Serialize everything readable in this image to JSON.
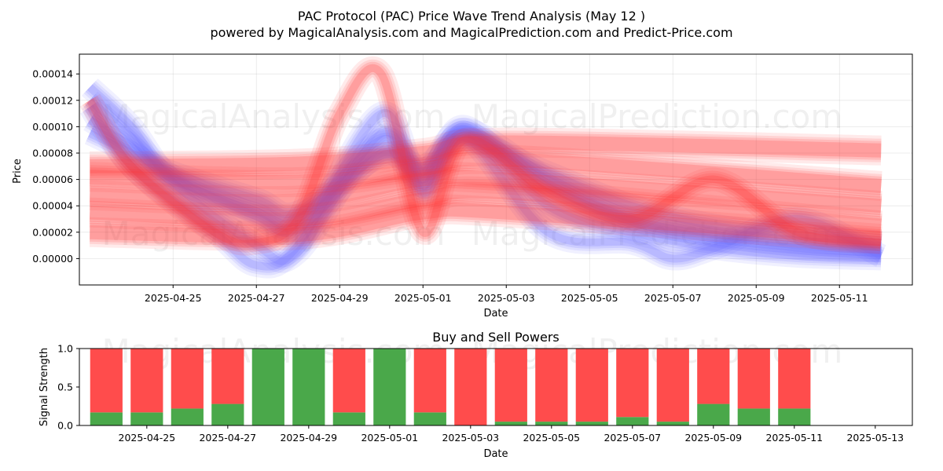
{
  "title_line1": "PAC Protocol (PAC) Price Wave Trend Analysis (May 12 )",
  "title_line2": "powered by MagicalAnalysis.com and MagicalPrediction.com and Predict-Price.com",
  "watermarks": [
    "MagicalAnalysis.com",
    "MagicalPrediction.com"
  ],
  "colors": {
    "buy": "#4aa84a",
    "sell": "#ff4c4c",
    "wave_blue": "#6a6aff",
    "wave_red": "#ff3030"
  },
  "chart_data": [
    {
      "type": "line",
      "title": "",
      "xlabel": "Date",
      "ylabel": "Price",
      "grid": true,
      "x_ticks": [
        "2025-04-25",
        "2025-04-27",
        "2025-04-29",
        "2025-05-01",
        "2025-05-03",
        "2025-05-05",
        "2025-05-07",
        "2025-05-09",
        "2025-05-11"
      ],
      "y_ticks": [
        "0.00000",
        "0.00002",
        "0.00004",
        "0.00006",
        "0.00008",
        "0.00010",
        "0.00012",
        "0.00014"
      ],
      "xlim": [
        "2025-04-22T18:00",
        "2025-05-12T18:00"
      ],
      "ylim": [
        -2e-05,
        0.000155
      ],
      "series": [
        {
          "color": "blue",
          "x": [
            "2025-04-23",
            "2025-04-24",
            "2025-04-25",
            "2025-04-27",
            "2025-04-28",
            "2025-04-30",
            "2025-05-01",
            "2025-05-02",
            "2025-05-04",
            "2025-05-06",
            "2025-05-08",
            "2025-05-10",
            "2025-05-12"
          ],
          "y": [
            0.00012,
            9.2e-05,
            6.2e-05,
            3.2e-05,
            2.2e-05,
            8e-05,
            6e-05,
            9.5e-05,
            5.5e-05,
            2.8e-05,
            1.5e-05,
            8e-06,
            4e-06
          ]
        },
        {
          "color": "blue",
          "x": [
            "2025-04-23",
            "2025-04-24",
            "2025-04-25",
            "2025-04-27",
            "2025-04-28",
            "2025-04-30",
            "2025-05-01",
            "2025-05-02",
            "2025-05-04",
            "2025-05-06",
            "2025-05-08",
            "2025-05-10",
            "2025-05-12"
          ],
          "y": [
            0.000105,
            8.5e-05,
            6e-05,
            3.6e-05,
            3e-05,
            9e-05,
            6.6e-05,
            9.8e-05,
            6e-05,
            3e-05,
            1.8e-05,
            1e-05,
            6e-06
          ]
        },
        {
          "color": "blue",
          "x": [
            "2025-04-23",
            "2025-04-24",
            "2025-04-25",
            "2025-04-27",
            "2025-04-28",
            "2025-04-30",
            "2025-05-01",
            "2025-05-02",
            "2025-05-04",
            "2025-05-06",
            "2025-05-08",
            "2025-05-10",
            "2025-05-12"
          ],
          "y": [
            0.00013,
            0.0001,
            5.8e-05,
            1e-05,
            5e-06,
            9.5e-05,
            5.5e-05,
            0.0001,
            4e-05,
            2e-05,
            8e-06,
            2e-06,
            0.0
          ]
        },
        {
          "color": "blue",
          "x": [
            "2025-04-23",
            "2025-04-24",
            "2025-04-25",
            "2025-04-27",
            "2025-04-28",
            "2025-04-30",
            "2025-05-01",
            "2025-05-02",
            "2025-05-04",
            "2025-05-06",
            "2025-05-08",
            "2025-05-10",
            "2025-05-12"
          ],
          "y": [
            9.5e-05,
            8e-05,
            6.5e-05,
            4.5e-05,
            3.5e-05,
            7.8e-05,
            7e-05,
            9e-05,
            6.5e-05,
            4e-05,
            2.5e-05,
            1.8e-05,
            1.2e-05
          ]
        },
        {
          "color": "blue",
          "x": [
            "2025-04-23",
            "2025-04-24",
            "2025-04-26",
            "2025-04-27",
            "2025-04-28",
            "2025-04-30",
            "2025-05-01",
            "2025-05-02",
            "2025-05-04",
            "2025-05-06",
            "2025-05-07",
            "2025-05-08",
            "2025-05-10",
            "2025-05-12"
          ],
          "y": [
            0.000115,
            7e-05,
            2e-05,
            -5e-06,
            1e-05,
            0.00011,
            5e-05,
            9.2e-05,
            2e-05,
            1.2e-05,
            0.0,
            8e-06,
            3e-05,
            2e-06
          ]
        },
        {
          "color": "red",
          "x": [
            "2025-04-23",
            "2025-04-24",
            "2025-04-26",
            "2025-04-27",
            "2025-04-28",
            "2025-04-29",
            "2025-04-30",
            "2025-05-01",
            "2025-05-02",
            "2025-05-04",
            "2025-05-06",
            "2025-05-08",
            "2025-05-10",
            "2025-05-12"
          ],
          "y": [
            0.00012,
            7e-05,
            2e-05,
            1.2e-05,
            3e-05,
            0.00011,
            0.00014,
            2e-05,
            9e-05,
            5e-05,
            3e-05,
            6e-05,
            2e-05,
            1.2e-05
          ]
        },
        {
          "color": "red",
          "x": [
            "2025-04-23",
            "2025-04-28",
            "2025-05-01",
            "2025-05-03",
            "2025-05-12"
          ],
          "y": [
            7e-05,
            7.2e-05,
            8e-05,
            8.8e-05,
            8.2e-05
          ]
        },
        {
          "color": "red",
          "x": [
            "2025-04-23",
            "2025-04-28",
            "2025-05-01",
            "2025-05-03",
            "2025-05-12"
          ],
          "y": [
            6.2e-05,
            5.8e-05,
            6.8e-05,
            7.5e-05,
            5.5e-05
          ]
        },
        {
          "color": "red",
          "x": [
            "2025-04-23",
            "2025-04-28",
            "2025-05-01",
            "2025-05-03",
            "2025-05-12"
          ],
          "y": [
            4.8e-05,
            4.4e-05,
            6e-05,
            6e-05,
            4e-05
          ]
        },
        {
          "color": "red",
          "x": [
            "2025-04-23",
            "2025-04-28",
            "2025-05-01",
            "2025-05-03",
            "2025-05-12"
          ],
          "y": [
            3.5e-05,
            3e-05,
            4.5e-05,
            5e-05,
            2.5e-05
          ]
        },
        {
          "color": "red",
          "x": [
            "2025-04-23",
            "2025-04-28",
            "2025-05-01",
            "2025-05-03",
            "2025-05-12"
          ],
          "y": [
            2e-05,
            1.8e-05,
            3.5e-05,
            3.5e-05,
            1.5e-05
          ]
        }
      ]
    },
    {
      "type": "bar",
      "stacked": true,
      "title": "Buy and Sell Powers",
      "xlabel": "Date",
      "ylabel": "Signal Strength",
      "grid": false,
      "x_ticks": [
        "2025-04-25",
        "2025-04-27",
        "2025-04-29",
        "2025-05-01",
        "2025-05-03",
        "2025-05-05",
        "2025-05-07",
        "2025-05-09",
        "2025-05-11",
        "2025-05-13"
      ],
      "y_ticks": [
        "0.0",
        "0.5",
        "1.0"
      ],
      "xlim": [
        "2025-04-23T08:00",
        "2025-05-13T22:00"
      ],
      "ylim": [
        0,
        1
      ],
      "categories": [
        "2025-04-24",
        "2025-04-25",
        "2025-04-26",
        "2025-04-27",
        "2025-04-28",
        "2025-04-29",
        "2025-04-30",
        "2025-05-01",
        "2025-05-02",
        "2025-05-03",
        "2025-05-04",
        "2025-05-05",
        "2025-05-06",
        "2025-05-07",
        "2025-05-08",
        "2025-05-09",
        "2025-05-10",
        "2025-05-11"
      ],
      "buy": [
        0.17,
        0.17,
        0.22,
        0.28,
        1.0,
        1.0,
        0.17,
        1.0,
        0.17,
        0.0,
        0.05,
        0.05,
        0.05,
        0.11,
        0.05,
        0.28,
        0.22,
        0.22
      ],
      "sell": [
        0.83,
        0.83,
        0.78,
        0.72,
        0.0,
        0.0,
        0.83,
        0.0,
        0.83,
        1.0,
        0.95,
        0.95,
        0.95,
        0.89,
        0.95,
        0.72,
        0.78,
        0.78
      ]
    }
  ]
}
